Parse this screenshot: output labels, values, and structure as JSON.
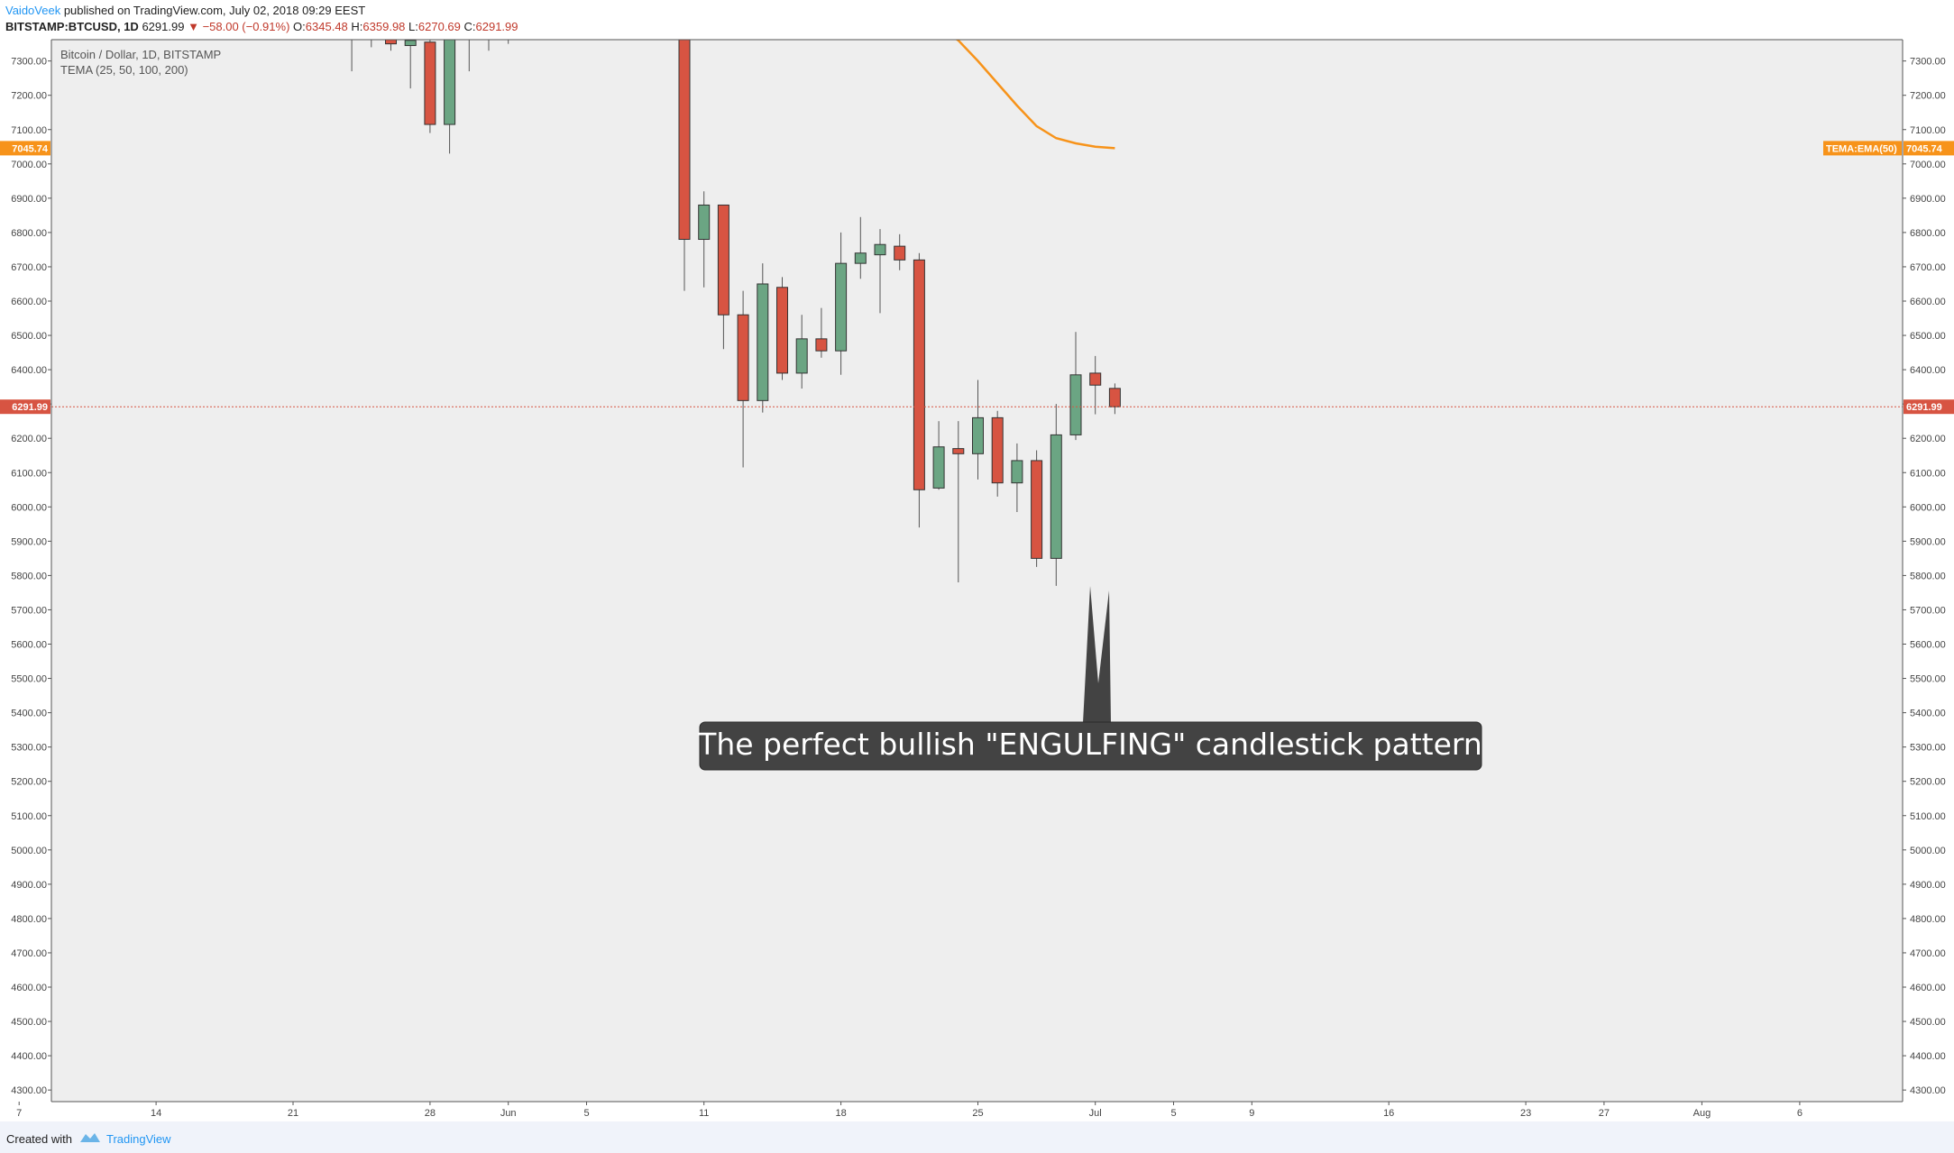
{
  "header": {
    "author": "VaidoVeek",
    "published": "published on TradingView.com, July 02, 2018 09:29 EEST",
    "symbol": "BITSTAMP:BTCUSD, 1D",
    "last": "6291.99",
    "change": "−58.00 (−0.91%)",
    "o_label": "O:",
    "o_value": "6345.48",
    "h_label": "H:",
    "h_value": "6359.98",
    "l_label": "L:",
    "l_value": "6270.69",
    "c_label": "C:",
    "c_value": "6291.99"
  },
  "legend": {
    "line1": "Bitcoin / Dollar, 1D, BITSTAMP",
    "line2": "TEMA (25, 50, 100, 200)"
  },
  "annotation": {
    "text": "The perfect bullish \"ENGULFING\" candlestick pattern"
  },
  "footer": {
    "created_with": "Created with",
    "brand": "TradingView"
  },
  "colors": {
    "up": "#6ba583",
    "down": "#d75442",
    "ema": "#f7931a",
    "price_line": "#d75442",
    "background": "#eeeeee",
    "annotation_bg": "#434343"
  },
  "chart_data": {
    "type": "candlestick",
    "title": "Bitcoin / Dollar, 1D, BITSTAMP",
    "ylim": [
      4250,
      7380
    ],
    "y_ticks": [
      4300,
      4400,
      4500,
      4600,
      4700,
      4800,
      4900,
      5000,
      5100,
      5200,
      5300,
      5400,
      5500,
      5600,
      5700,
      5800,
      5900,
      6000,
      6100,
      6200,
      6300,
      6400,
      6500,
      6600,
      6700,
      6800,
      6900,
      7000,
      7100,
      7200,
      7300
    ],
    "x_labels": [
      {
        "day": -24,
        "label": "7"
      },
      {
        "day": -17,
        "label": "14"
      },
      {
        "day": -10,
        "label": "21"
      },
      {
        "day": -3,
        "label": "28"
      },
      {
        "day": 1,
        "label": "Jun"
      },
      {
        "day": 5,
        "label": "5"
      },
      {
        "day": 11,
        "label": "11"
      },
      {
        "day": 18,
        "label": "18"
      },
      {
        "day": 25,
        "label": "25"
      },
      {
        "day": 31,
        "label": "Jul"
      },
      {
        "day": 35,
        "label": "5"
      },
      {
        "day": 39,
        "label": "9"
      },
      {
        "day": 46,
        "label": "16"
      },
      {
        "day": 53,
        "label": "23"
      },
      {
        "day": 57,
        "label": "27"
      },
      {
        "day": 62,
        "label": "Aug"
      },
      {
        "day": 67,
        "label": "6"
      }
    ],
    "candles": [
      {
        "day": -7,
        "o": 7400,
        "h": 7420,
        "l": 7270,
        "c": 7400
      },
      {
        "day": -6,
        "o": 7400,
        "h": 7420,
        "l": 7340,
        "c": 7400
      },
      {
        "day": -5,
        "o": 7380,
        "h": 7420,
        "l": 7330,
        "c": 7350
      },
      {
        "day": -4,
        "o": 7345,
        "h": 7400,
        "l": 7220,
        "c": 7360
      },
      {
        "day": -3,
        "o": 7355,
        "h": 7390,
        "l": 7090,
        "c": 7115
      },
      {
        "day": -2,
        "o": 7115,
        "h": 7420,
        "l": 7030,
        "c": 7400
      },
      {
        "day": -1,
        "o": 7400,
        "h": 7420,
        "l": 7270,
        "c": 7400
      },
      {
        "day": 0,
        "o": 7400,
        "h": 7420,
        "l": 7330,
        "c": 7400
      },
      {
        "day": 1,
        "o": 7400,
        "h": 7420,
        "l": 7350,
        "c": 7400
      },
      {
        "day": 10,
        "o": 7450,
        "h": 7480,
        "l": 6630,
        "c": 6780
      },
      {
        "day": 11,
        "o": 6780,
        "h": 6920,
        "l": 6640,
        "c": 6880
      },
      {
        "day": 12,
        "o": 6880,
        "h": 6880,
        "l": 6460,
        "c": 6560
      },
      {
        "day": 13,
        "o": 6560,
        "h": 6630,
        "l": 6115,
        "c": 6310
      },
      {
        "day": 14,
        "o": 6310,
        "h": 6710,
        "l": 6275,
        "c": 6650
      },
      {
        "day": 15,
        "o": 6640,
        "h": 6670,
        "l": 6370,
        "c": 6390
      },
      {
        "day": 16,
        "o": 6390,
        "h": 6560,
        "l": 6345,
        "c": 6490
      },
      {
        "day": 17,
        "o": 6490,
        "h": 6580,
        "l": 6435,
        "c": 6455
      },
      {
        "day": 18,
        "o": 6455,
        "h": 6800,
        "l": 6385,
        "c": 6710
      },
      {
        "day": 19,
        "o": 6710,
        "h": 6845,
        "l": 6665,
        "c": 6740
      },
      {
        "day": 20,
        "o": 6735,
        "h": 6810,
        "l": 6565,
        "c": 6765
      },
      {
        "day": 21,
        "o": 6760,
        "h": 6795,
        "l": 6690,
        "c": 6720
      },
      {
        "day": 22,
        "o": 6720,
        "h": 6740,
        "l": 5940,
        "c": 6050
      },
      {
        "day": 23,
        "o": 6055,
        "h": 6250,
        "l": 6050,
        "c": 6175
      },
      {
        "day": 24,
        "o": 6170,
        "h": 6250,
        "l": 5780,
        "c": 6155
      },
      {
        "day": 25,
        "o": 6155,
        "h": 6370,
        "l": 6080,
        "c": 6260
      },
      {
        "day": 26,
        "o": 6260,
        "h": 6280,
        "l": 6030,
        "c": 6070
      },
      {
        "day": 27,
        "o": 6070,
        "h": 6185,
        "l": 5985,
        "c": 6135
      },
      {
        "day": 28,
        "o": 6135,
        "h": 6165,
        "l": 5825,
        "c": 5850
      },
      {
        "day": 29,
        "o": 5850,
        "h": 6300,
        "l": 5770,
        "c": 6210
      },
      {
        "day": 30,
        "o": 6210,
        "h": 6510,
        "l": 6195,
        "c": 6385
      },
      {
        "day": 31,
        "o": 6390,
        "h": 6440,
        "l": 6270,
        "c": 6355
      },
      {
        "day": 32,
        "o": 6345.48,
        "h": 6359.98,
        "l": 6270.69,
        "c": 6291.99
      }
    ],
    "ema_line": [
      {
        "day": 23,
        "v": 7400
      },
      {
        "day": 24,
        "v": 7360
      },
      {
        "day": 25,
        "v": 7300
      },
      {
        "day": 26,
        "v": 7235
      },
      {
        "day": 27,
        "v": 7170
      },
      {
        "day": 28,
        "v": 7110
      },
      {
        "day": 29,
        "v": 7075
      },
      {
        "day": 30,
        "v": 7060
      },
      {
        "day": 31,
        "v": 7050
      },
      {
        "day": 32,
        "v": 7045.74
      }
    ],
    "last_price": 6291.99,
    "last_price_label": "6291.99",
    "ema_value": 7045.74,
    "ema_value_label": "7045.74",
    "ema_label": "TEMA:EMA(50)"
  }
}
